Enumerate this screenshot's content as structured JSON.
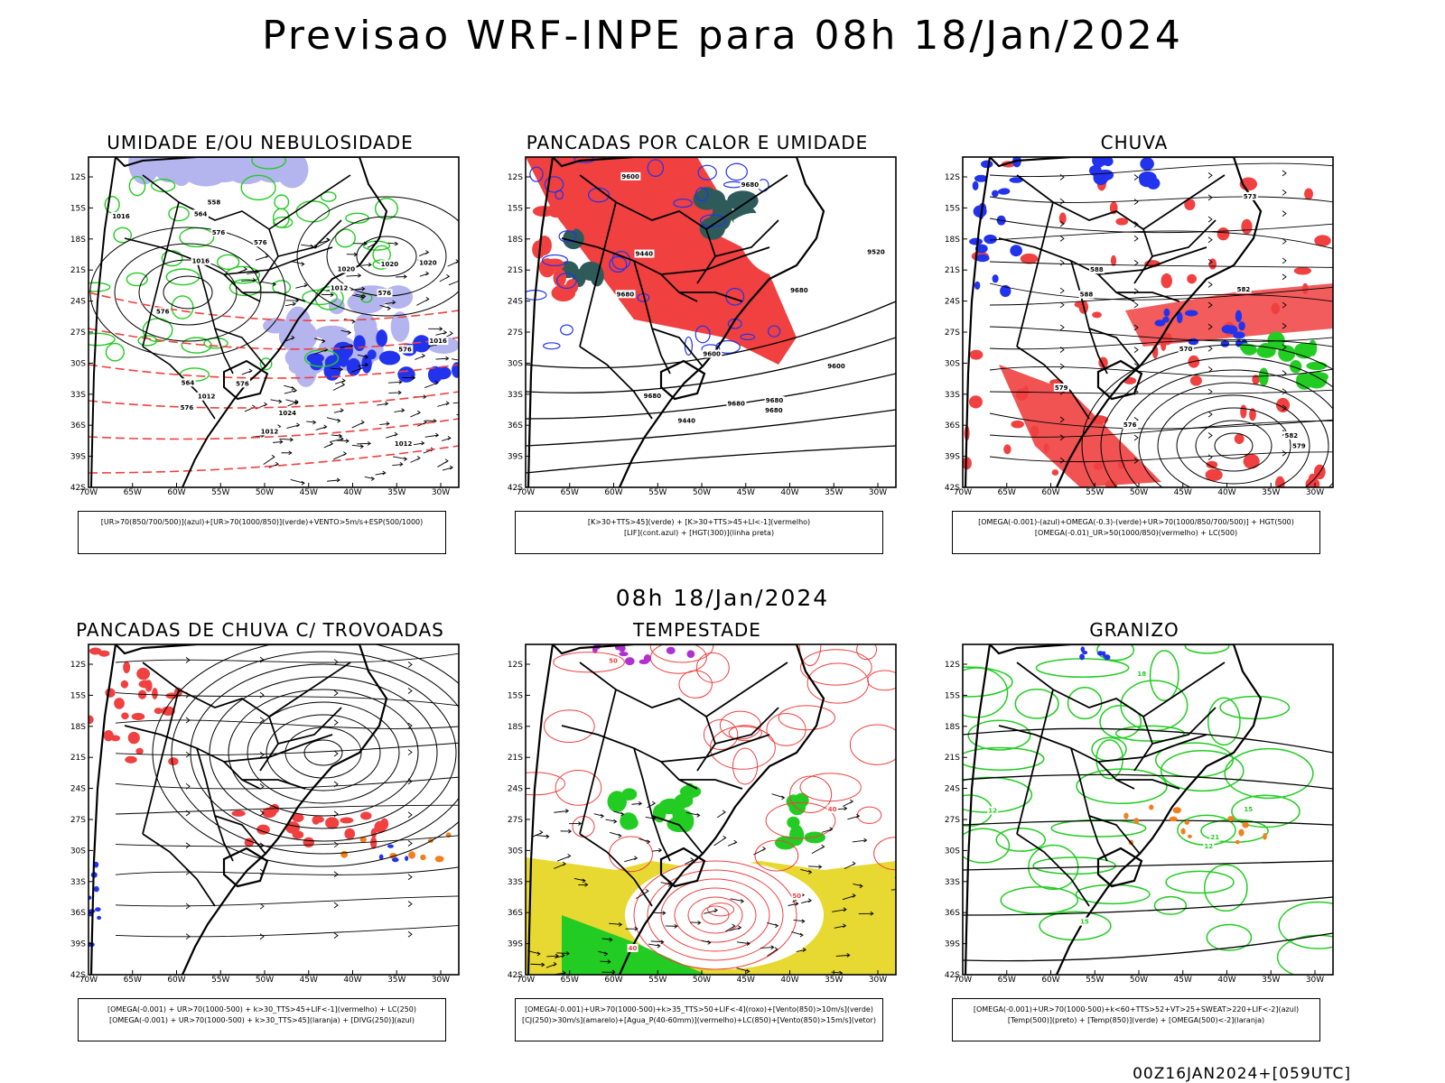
{
  "title": "Previsao WRF-INPE  para 08h 18/Jan/2024",
  "subtitle": "08h 18/Jan/2024",
  "footer": "00Z16JAN2024+[059UTC]",
  "axes": {
    "lat_ticks": [
      "12S",
      "15S",
      "18S",
      "21S",
      "24S",
      "27S",
      "30S",
      "33S",
      "36S",
      "39S",
      "42S"
    ],
    "lon_ticks": [
      "70W",
      "65W",
      "60W",
      "55W",
      "50W",
      "45W",
      "40W",
      "35W",
      "30W"
    ]
  },
  "colors": {
    "red": "#f04040",
    "green": "#22cc22",
    "blue": "#2233ee",
    "lavender": "#b4b4ee",
    "darkteal": "#2f5a5a",
    "yellow": "#e8d832",
    "orange": "#f08020",
    "purple": "#b030d0",
    "black": "#000000"
  },
  "panels": [
    {
      "title": "UMIDADE E/OU NEBULOSIDADE",
      "legend": [
        "[UR>70(850/700/500)](azul)+[UR>70(1000/850)](verde)+VENTO>5m/s+ESP(500/1000)"
      ],
      "contour_labels": [
        "1016",
        "1012",
        "1012",
        "1012",
        "1020",
        "1016",
        "1016",
        "1012",
        "1020",
        "1020",
        "1024",
        "576",
        "576",
        "576",
        "576",
        "576",
        "576",
        "576",
        "564",
        "564",
        "558"
      ]
    },
    {
      "title": "PANCADAS POR CALOR E UMIDADE",
      "legend": [
        "[K>30+TTS>45](verde) + [K>30+TTS>45+LI<-1](vermelho)",
        "[LIF](cont.azul) + [HGT(300)](linha preta)"
      ],
      "contour_labels": [
        "9680",
        "9680",
        "9680",
        "9680",
        "9680",
        "9680",
        "9680",
        "9600",
        "9520",
        "9440",
        "9600",
        "9600",
        "9440"
      ]
    },
    {
      "title": "CHUVA",
      "legend": [
        "[OMEGA(-0.001)-(azul)+OMEGA(-0.3)-(verde)+UR>70(1000/850/700/500)] + HGT(500)",
        "[OMEGA(-0.01)_UR>50(1000/850)(vermelho) + LC(500)"
      ],
      "contour_labels": [
        "588",
        "588",
        "582",
        "582",
        "579",
        "579",
        "573",
        "576",
        "570"
      ]
    },
    {
      "title": "PANCADAS DE CHUVA C/ TROVOADAS",
      "legend": [
        "[OMEGA(-0.001) + UR>70(1000-500) + k>30_TTS>45+LIF<-1](vermelho) + LC(250)",
        "[OMEGA(-0.001) + UR>70(1000-500) + k>30_TTS>45](laranja) + [DIVG(250)](azul)"
      ],
      "contour_labels": []
    },
    {
      "title": "TEMPESTADE",
      "legend": [
        "[OMEGA(-0.001)+UR>70(1000-500)+k>35_TTS>50+LIF<-4](roxo)+[Vento(850)>10m/s](verde)",
        "[CJ(250)>30m/s](amarelo)+[Agua_P(40-60mm)](vermelho)+LC(850)+[Vento(850)>15m/s](vetor)"
      ],
      "contour_labels": [
        "50",
        "50",
        "40",
        "40"
      ]
    },
    {
      "title": "GRANIZO",
      "legend": [
        "[OMEGA(-0.001)+UR>70(1000-500)+k<60+TTS>52+VT>25+SWEAT>220+LIF<-2](azul)",
        "[Temp(500)](preto) + [Temp(850)](verde) + [OMEGA(500)<-2](laranja)"
      ],
      "contour_labels": [
        "15",
        "12",
        "21",
        "18",
        "15",
        "12"
      ]
    }
  ]
}
